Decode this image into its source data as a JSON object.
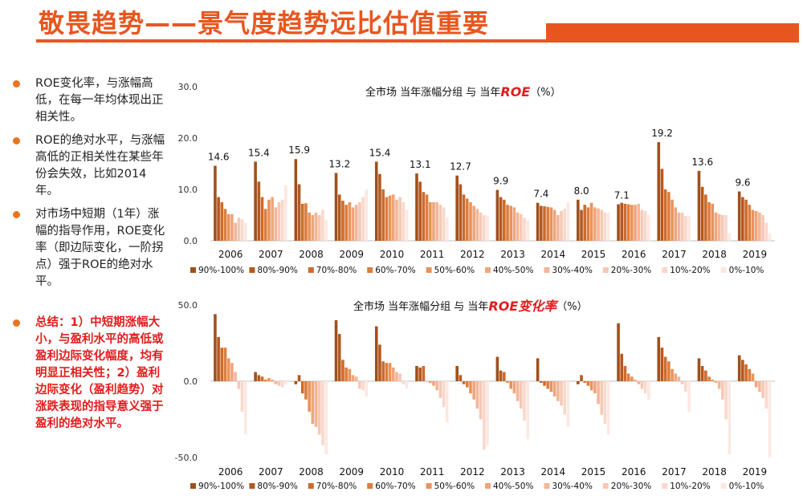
{
  "title": "敬畏趋势——景气度趋势远比估值重要",
  "bullets": [
    "ROE变化率，与涨幅高低，在每一年均体现出正相关性。",
    "ROE的绝对水平，与涨幅高低的正相关性在某些年份会失效，比如2014年。",
    "对市场中短期（1年）涨幅的指导作用，ROE变化率（即边际变化，一阶拐点）强于ROE的绝对水平。"
  ],
  "summary": "总结：1）中短期涨幅大小，与盈利水平的高低或盈利边际变化幅度，均有明显正相关性；2）盈利边际变化（盈利趋势）对涨跌表现的指导意义强于盈利的绝对水平。",
  "colors": [
    "#a0501c",
    "#b4591f",
    "#cd6a2c",
    "#dd7d3e",
    "#e8935c",
    "#efa57c",
    "#f2b69a",
    "#f6c8b5",
    "#f9d8cc",
    "#fce8e1"
  ],
  "chart_data": [
    {
      "type": "bar",
      "title_prefix": "全市场  当年涨幅分组  与  当年",
      "title_emph": "ROE",
      "title_suffix": "（%）",
      "categories": [
        "2006",
        "2007",
        "2008",
        "2009",
        "2010",
        "2011",
        "2012",
        "2013",
        "2014",
        "2015",
        "2016",
        "2017",
        "2018",
        "2019"
      ],
      "ylim": [
        0,
        30
      ],
      "yticks": [
        "0.0",
        "10.0",
        "20.0",
        "30.0"
      ],
      "data_labels": [
        "14.6",
        "15.4",
        "15.9",
        "13.2",
        "15.4",
        "13.1",
        "12.7",
        "9.9",
        "7.4",
        "8.0",
        "7.1",
        "19.2",
        "13.6",
        "9.6"
      ],
      "series": [
        {
          "name": "90%-100%",
          "values": [
            14.6,
            15.4,
            15.9,
            13.2,
            15.4,
            13.1,
            12.7,
            9.9,
            7.4,
            8.0,
            7.1,
            19.2,
            13.6,
            9.6
          ]
        },
        {
          "name": "80%-90%",
          "values": [
            8.5,
            11.5,
            11.0,
            9.0,
            13.0,
            11.5,
            11.0,
            8.5,
            6.8,
            6.0,
            7.4,
            14.0,
            10.5,
            8.5
          ]
        },
        {
          "name": "70%-80%",
          "values": [
            7.5,
            8.5,
            7.2,
            7.8,
            10.0,
            9.5,
            9.0,
            8.0,
            6.7,
            7.0,
            7.2,
            10.0,
            9.0,
            8.0
          ]
        },
        {
          "name": "60%-70%",
          "values": [
            6.2,
            6.2,
            7.3,
            7.0,
            8.5,
            9.0,
            8.2,
            7.0,
            6.6,
            6.5,
            7.1,
            9.5,
            7.5,
            7.0
          ]
        },
        {
          "name": "50%-60%",
          "values": [
            5.2,
            8.0,
            5.5,
            7.5,
            8.8,
            7.5,
            7.5,
            6.8,
            6.5,
            7.4,
            7.0,
            8.0,
            7.2,
            6.0
          ]
        },
        {
          "name": "40%-50%",
          "values": [
            5.2,
            8.5,
            5.0,
            6.5,
            9.0,
            7.5,
            6.8,
            6.5,
            6.0,
            6.5,
            7.0,
            6.5,
            5.5,
            5.8
          ]
        },
        {
          "name": "30%-40%",
          "values": [
            3.5,
            6.5,
            5.5,
            7.0,
            8.0,
            7.5,
            6.2,
            5.5,
            5.0,
            6.3,
            7.2,
            5.5,
            5.2,
            5.5
          ]
        },
        {
          "name": "20%-30%",
          "values": [
            4.5,
            7.5,
            5.0,
            7.5,
            8.5,
            7.0,
            5.5,
            5.2,
            5.8,
            6.0,
            6.0,
            5.5,
            5.0,
            5.0
          ]
        },
        {
          "name": "10%-20%",
          "values": [
            4.2,
            8.0,
            6.0,
            8.5,
            7.5,
            6.5,
            5.0,
            4.5,
            6.2,
            5.5,
            5.8,
            4.8,
            5.0,
            3.5
          ]
        },
        {
          "name": "0%-10%",
          "values": [
            3.5,
            10.8,
            4.0,
            10.0,
            6.0,
            4.5,
            4.8,
            4.0,
            7.5,
            5.5,
            5.0,
            4.8,
            1.5,
            1.5
          ]
        }
      ]
    },
    {
      "type": "bar",
      "title_prefix": "全市场  当年涨幅分组  与  当年",
      "title_emph": "ROE变化率",
      "title_suffix": "（%）",
      "categories": [
        "2006",
        "2007",
        "2008",
        "2009",
        "2010",
        "2011",
        "2012",
        "2013",
        "2014",
        "2015",
        "2016",
        "2017",
        "2018",
        "2019"
      ],
      "ylim": [
        -50,
        50
      ],
      "yticks": [
        "-50.0",
        "0.0",
        "50.0"
      ],
      "series": [
        {
          "name": "90%-100%",
          "values": [
            44,
            6,
            -2,
            40,
            36,
            10,
            10,
            16,
            15,
            -2,
            38,
            29,
            15,
            17
          ]
        },
        {
          "name": "80%-90%",
          "values": [
            29,
            4,
            4,
            31,
            24,
            9,
            4,
            7,
            -1,
            4,
            18,
            22,
            10,
            14
          ]
        },
        {
          "name": "70%-80%",
          "values": [
            22,
            3,
            -8,
            14,
            13,
            10,
            -2,
            6,
            -3,
            -1,
            10,
            16,
            7,
            11
          ]
        },
        {
          "name": "60%-70%",
          "values": [
            22,
            1,
            -12,
            9,
            12,
            0,
            -4,
            -1,
            -5,
            -3,
            5,
            13,
            3,
            8
          ]
        },
        {
          "name": "50%-60%",
          "values": [
            15,
            2,
            -20,
            8,
            12,
            -1,
            -8,
            -5,
            -7,
            -6,
            3,
            8,
            1,
            5
          ]
        },
        {
          "name": "40%-50%",
          "values": [
            12,
            1,
            -28,
            4,
            9,
            -3,
            -12,
            -8,
            -10,
            -8,
            1,
            5,
            -1,
            -4
          ]
        },
        {
          "name": "30%-40%",
          "values": [
            6,
            -2,
            -30,
            3,
            6,
            -6,
            -18,
            -13,
            -13,
            -15,
            -2,
            3,
            -5,
            -7
          ]
        },
        {
          "name": "20%-30%",
          "values": [
            -5,
            -3,
            -35,
            -5,
            5,
            -11,
            -25,
            -18,
            -16,
            -22,
            -5,
            -2,
            -12,
            -11
          ]
        },
        {
          "name": "10%-20%",
          "values": [
            -20,
            -4,
            -42,
            -6,
            -2,
            -17,
            -45,
            -26,
            -22,
            -28,
            -8,
            -7,
            -25,
            -18
          ]
        },
        {
          "name": "0%-10%",
          "values": [
            -35,
            -2,
            -48,
            -10,
            -5,
            -27,
            -42,
            -38,
            -30,
            -35,
            -12,
            -20,
            -48,
            -50
          ]
        }
      ]
    }
  ]
}
